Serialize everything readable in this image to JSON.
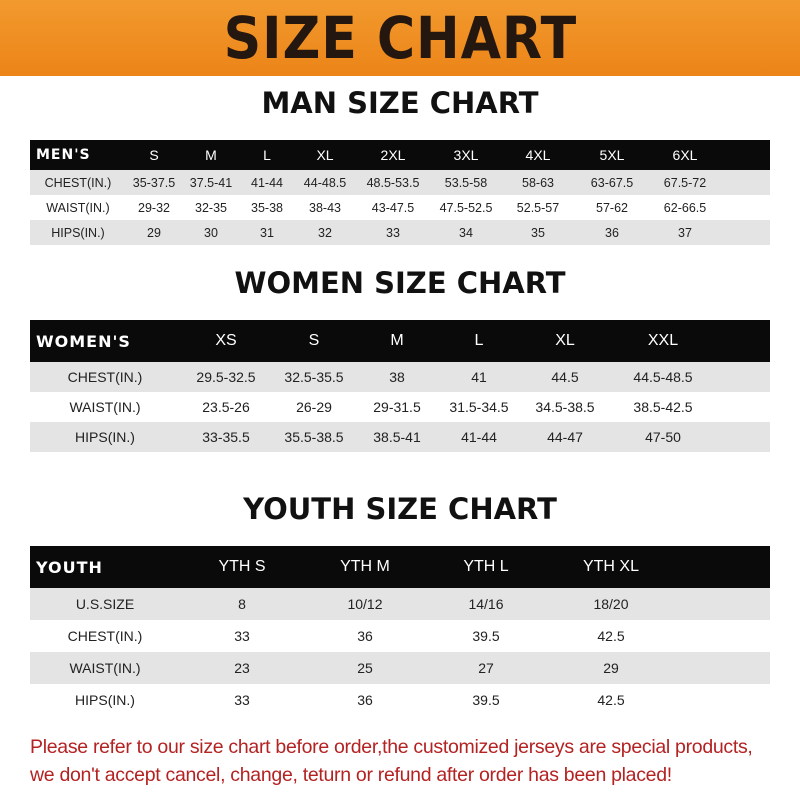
{
  "banner": {
    "title": "SIZE CHART",
    "background": "#ec8418"
  },
  "men": {
    "title": "MAN SIZE CHART",
    "header": "MEN'S",
    "sizes": [
      "S",
      "M",
      "L",
      "XL",
      "2XL",
      "3XL",
      "4XL",
      "5XL",
      "6XL"
    ],
    "rows": [
      {
        "label": "CHEST(IN.)",
        "values": [
          "35-37.5",
          "37.5-41",
          "41-44",
          "44-48.5",
          "48.5-53.5",
          "53.5-58",
          "58-63",
          "63-67.5",
          "67.5-72"
        ]
      },
      {
        "label": "WAIST(IN.)",
        "values": [
          "29-32",
          "32-35",
          "35-38",
          "38-43",
          "43-47.5",
          "47.5-52.5",
          "52.5-57",
          "57-62",
          "62-66.5"
        ]
      },
      {
        "label": "HIPS(IN.)",
        "values": [
          "29",
          "30",
          "31",
          "32",
          "33",
          "34",
          "35",
          "36",
          "37"
        ]
      }
    ]
  },
  "women": {
    "title": "WOMEN SIZE CHART",
    "header": "WOMEN'S",
    "sizes": [
      "XS",
      "S",
      "M",
      "L",
      "XL",
      "XXL"
    ],
    "rows": [
      {
        "label": "CHEST(IN.)",
        "values": [
          "29.5-32.5",
          "32.5-35.5",
          "38",
          "41",
          "44.5",
          "44.5-48.5"
        ]
      },
      {
        "label": "WAIST(IN.)",
        "values": [
          "23.5-26",
          "26-29",
          "29-31.5",
          "31.5-34.5",
          "34.5-38.5",
          "38.5-42.5"
        ]
      },
      {
        "label": "HIPS(IN.)",
        "values": [
          "33-35.5",
          "35.5-38.5",
          "38.5-41",
          "41-44",
          "44-47",
          "47-50"
        ]
      }
    ]
  },
  "youth": {
    "title": "YOUTH SIZE CHART",
    "header": "YOUTH",
    "sizes": [
      "YTH S",
      "YTH M",
      "YTH L",
      "YTH XL"
    ],
    "rows": [
      {
        "label": "U.S.SIZE",
        "values": [
          "8",
          "10/12",
          "14/16",
          "18/20"
        ]
      },
      {
        "label": "CHEST(IN.)",
        "values": [
          "33",
          "36",
          "39.5",
          "42.5"
        ]
      },
      {
        "label": "WAIST(IN.)",
        "values": [
          "23",
          "25",
          "27",
          "29"
        ]
      },
      {
        "label": "HIPS(IN.)",
        "values": [
          "33",
          "36",
          "39.5",
          "42.5"
        ]
      }
    ]
  },
  "notice": {
    "line1": "Please refer to our size chart before order,the customized jerseys are special products,",
    "line2": "we don't accept cancel, change, teturn or refund after order has been placed!",
    "color": "#b42222"
  }
}
